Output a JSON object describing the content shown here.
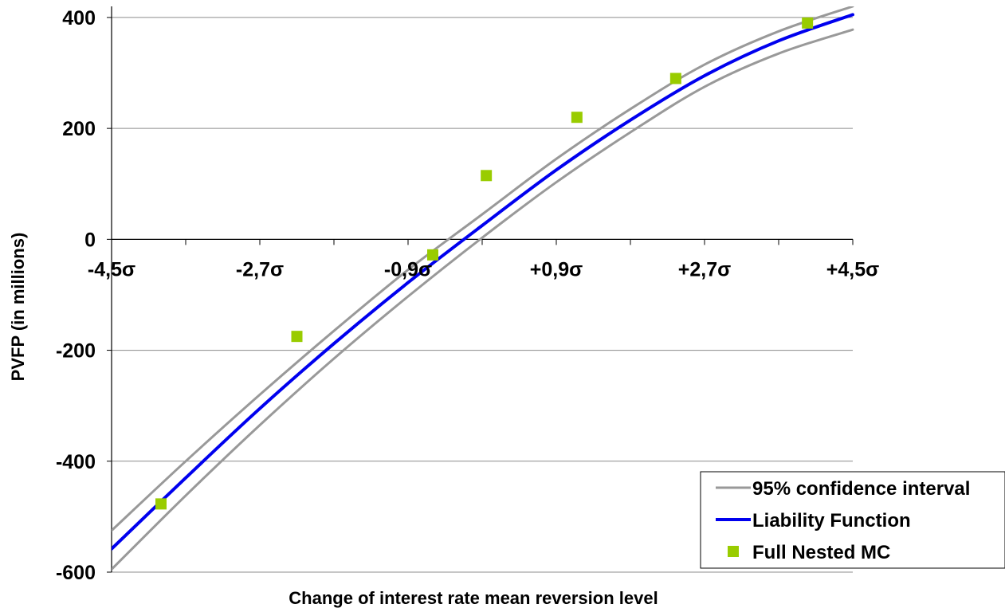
{
  "chart_data": {
    "type": "line",
    "title": "",
    "xlabel": "Change of interest rate mean reversion level",
    "ylabel": "PVFP (in millions)",
    "xlim": [
      -4.5,
      4.5
    ],
    "ylim": [
      -600,
      420
    ],
    "x_ticks": [
      {
        "value": -4.5,
        "label": "-4,5σ"
      },
      {
        "value": -2.7,
        "label": "-2,7σ"
      },
      {
        "value": -0.9,
        "label": "-0,9σ"
      },
      {
        "value": 0.9,
        "label": "+0,9σ"
      },
      {
        "value": 2.7,
        "label": "+2,7σ"
      },
      {
        "value": 4.5,
        "label": "+4,5σ"
      }
    ],
    "y_ticks": [
      {
        "value": 400,
        "label": "400"
      },
      {
        "value": 200,
        "label": "200"
      },
      {
        "value": 0,
        "label": "0"
      },
      {
        "value": -200,
        "label": "-200"
      },
      {
        "value": -400,
        "label": "-400"
      },
      {
        "value": -600,
        "label": "-600"
      }
    ],
    "grid": "horizontal",
    "legend_position": "bottom-right",
    "series": [
      {
        "name": "95% confidence interval",
        "kind": "line",
        "color": "#999999",
        "x": [
          -4.5,
          -3.6,
          -2.7,
          -1.8,
          -0.9,
          0.0,
          0.9,
          1.8,
          2.7,
          3.6,
          4.5
        ],
        "y": [
          -525,
          -400,
          -280,
          -165,
          -55,
          45,
          145,
          235,
          315,
          375,
          420
        ]
      },
      {
        "name": "Liability Function",
        "kind": "line",
        "color": "#0000ee",
        "x": [
          -4.5,
          -3.6,
          -2.7,
          -1.8,
          -0.9,
          0.0,
          0.9,
          1.8,
          2.7,
          3.6,
          4.5
        ],
        "y": [
          -558,
          -430,
          -305,
          -188,
          -78,
          25,
          125,
          215,
          295,
          358,
          405
        ]
      },
      {
        "name": "",
        "kind": "line",
        "color": "#999999",
        "legend": false,
        "x": [
          -4.5,
          -3.6,
          -2.7,
          -1.8,
          -0.9,
          0.0,
          0.9,
          1.8,
          2.7,
          3.6,
          4.5
        ],
        "y": [
          -595,
          -462,
          -335,
          -215,
          -103,
          3,
          103,
          193,
          275,
          335,
          378
        ]
      },
      {
        "name": "Full Nested MC",
        "kind": "scatter",
        "color": "#99cc00",
        "x": [
          -3.9,
          -2.25,
          -0.6,
          0.05,
          1.15,
          2.35,
          3.95
        ],
        "y": [
          -477,
          -175,
          -28,
          115,
          220,
          290,
          390
        ]
      }
    ]
  }
}
